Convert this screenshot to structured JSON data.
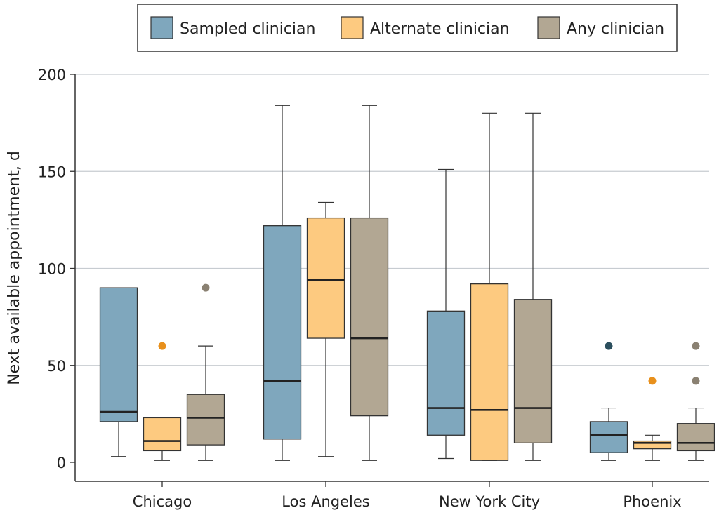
{
  "chart_data": {
    "type": "boxplot",
    "ylabel": "Next available appointment, d",
    "xlabel": "",
    "ylim": [
      0,
      200
    ],
    "yticks": [
      0,
      50,
      100,
      150,
      200
    ],
    "grid": true,
    "legend_position": "top",
    "categories": [
      "Chicago",
      "Los Angeles",
      "New York City",
      "Phoenix"
    ],
    "series": [
      {
        "name": "Sampled clinician",
        "color": "#7fa7bd",
        "outlier_color": "#2b4f5e",
        "boxes": [
          {
            "min": 3,
            "q1": 21,
            "median": 26,
            "q3": 90,
            "max": 90,
            "outliers": []
          },
          {
            "min": 1,
            "q1": 12,
            "median": 42,
            "q3": 122,
            "max": 184,
            "outliers": []
          },
          {
            "min": 2,
            "q1": 14,
            "median": 28,
            "q3": 78,
            "max": 151,
            "outliers": []
          },
          {
            "min": 1,
            "q1": 5,
            "median": 14,
            "q3": 21,
            "max": 28,
            "outliers": [
              60
            ]
          }
        ]
      },
      {
        "name": "Alternate clinician",
        "color": "#fdca80",
        "outlier_color": "#e8901c",
        "boxes": [
          {
            "min": 1,
            "q1": 6,
            "median": 11,
            "q3": 23,
            "max": 23,
            "outliers": [
              60
            ]
          },
          {
            "min": 3,
            "q1": 64,
            "median": 94,
            "q3": 126,
            "max": 134,
            "outliers": []
          },
          {
            "min": 1,
            "q1": 1,
            "median": 27,
            "q3": 92,
            "max": 180,
            "outliers": []
          },
          {
            "min": 1,
            "q1": 7,
            "median": 10,
            "q3": 11,
            "max": 14,
            "outliers": [
              42
            ]
          }
        ]
      },
      {
        "name": "Any clinician",
        "color": "#b2a793",
        "outlier_color": "#8a8172",
        "boxes": [
          {
            "min": 1,
            "q1": 9,
            "median": 23,
            "q3": 35,
            "max": 60,
            "outliers": [
              90
            ]
          },
          {
            "min": 1,
            "q1": 24,
            "median": 64,
            "q3": 126,
            "max": 184,
            "outliers": []
          },
          {
            "min": 1,
            "q1": 10,
            "median": 28,
            "q3": 84,
            "max": 180,
            "outliers": []
          },
          {
            "min": 1,
            "q1": 6,
            "median": 10,
            "q3": 20,
            "max": 28,
            "outliers": [
              42,
              60
            ]
          }
        ]
      }
    ]
  }
}
